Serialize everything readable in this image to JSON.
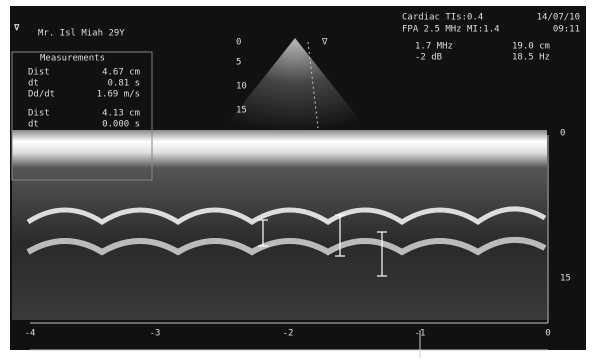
{
  "header": {
    "patient": "Mr. Isl Miah 29Y",
    "mode": "Cardiac TIs:0.4",
    "date": "14/07/10",
    "probe": "FPA 2.5 MHz MI:1.4",
    "time": "09:11"
  },
  "settings": [
    "1.7 MHz",
    "19.0 cm",
    "-2 dB",
    "18.5 Hz"
  ],
  "measurements": {
    "title": "Measurements",
    "rows": [
      [
        "Dist",
        "4.67 cm"
      ],
      [
        "dt",
        "0.81 s"
      ],
      [
        "Dd/dt",
        "1.69 m/s"
      ],
      [
        "Dist",
        "4.13 cm"
      ],
      [
        "dt",
        "0.000 s"
      ]
    ]
  },
  "depth_scale": [
    "0",
    "5",
    "10",
    "15"
  ],
  "mmode_depth_scale": [
    "0",
    "15"
  ],
  "time_scale": [
    "-4",
    "-3",
    "-2",
    "-1",
    "0"
  ]
}
